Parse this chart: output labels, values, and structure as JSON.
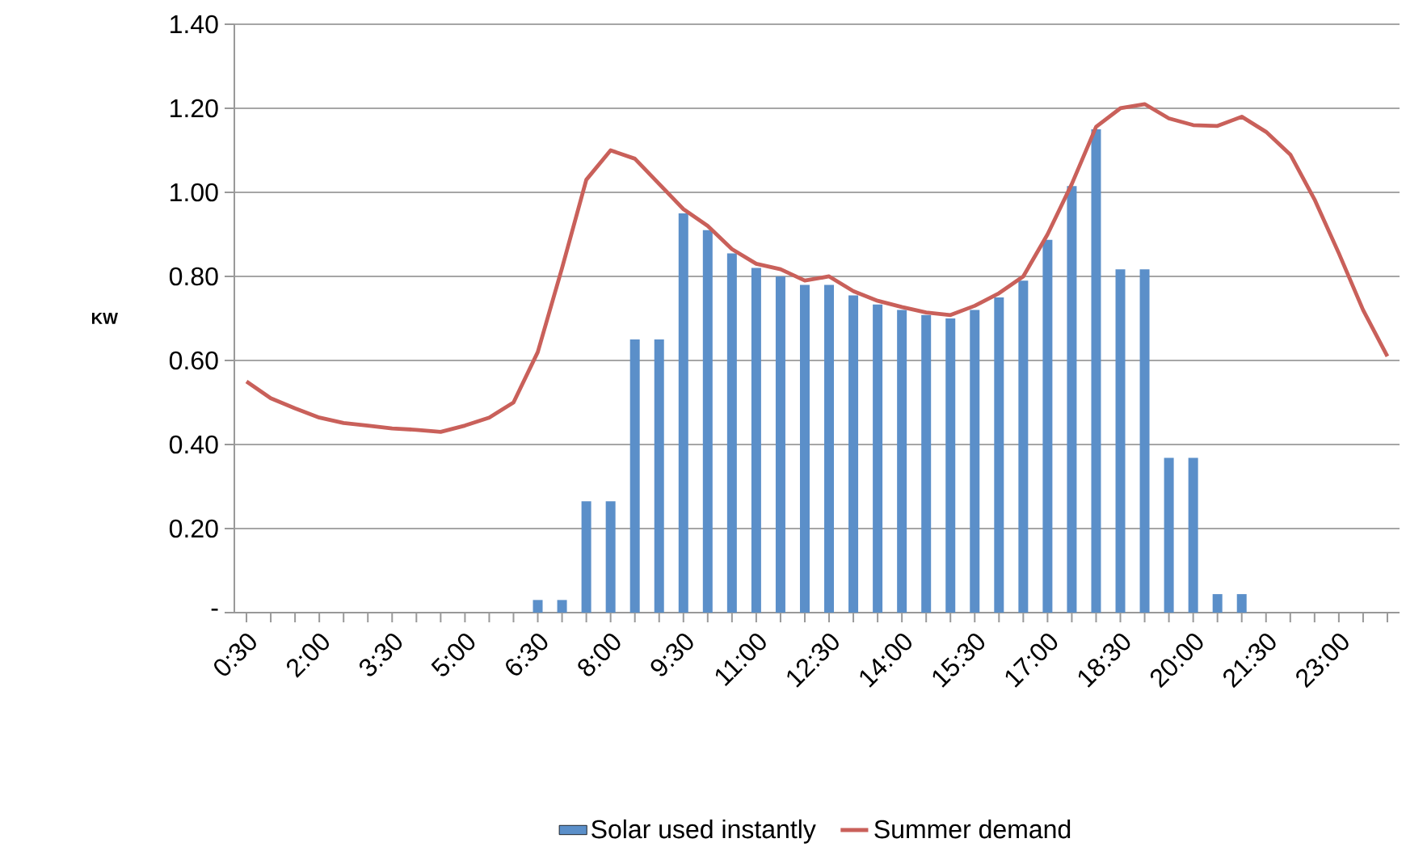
{
  "chart_data": {
    "type": "bar",
    "ylabel": "KW",
    "categories": [
      "0:30",
      null,
      null,
      "2:00",
      null,
      null,
      "3:30",
      null,
      null,
      "5:00",
      null,
      null,
      "6:30",
      null,
      null,
      "8:00",
      null,
      null,
      "9:30",
      null,
      null,
      "11:00",
      null,
      null,
      "12:30",
      null,
      null,
      "14:00",
      null,
      null,
      "15:30",
      null,
      null,
      "17:00",
      null,
      null,
      "18:30",
      null,
      null,
      "20:00",
      null,
      null,
      "21:30",
      null,
      null,
      "23:00",
      null,
      null
    ],
    "series": [
      {
        "name": "Solar used instantly",
        "color": "#5b8fc9",
        "values": [
          0,
          0,
          0,
          0,
          0,
          0,
          0,
          0,
          0,
          0,
          0,
          0,
          0.03,
          0.03,
          0.265,
          0.265,
          0.65,
          0.65,
          0.95,
          0.91,
          0.855,
          0.82,
          0.8,
          0.78,
          0.78,
          0.755,
          0.733,
          0.72,
          0.708,
          0.7,
          0.72,
          0.75,
          0.79,
          0.887,
          1.015,
          1.15,
          0.817,
          0.817,
          0.368,
          0.368,
          0.044,
          0.044,
          0,
          0,
          0,
          0,
          0,
          0
        ]
      },
      {
        "name": "Summer demand",
        "type": "line",
        "color": "#c9605a",
        "values": [
          0.55,
          0.51,
          0.486,
          0.464,
          0.451,
          0.445,
          0.438,
          0.435,
          0.43,
          0.445,
          0.464,
          0.5,
          0.62,
          0.82,
          1.03,
          1.1,
          1.08,
          1.02,
          0.96,
          0.92,
          0.865,
          0.83,
          0.817,
          0.79,
          0.8,
          0.765,
          0.742,
          0.727,
          0.714,
          0.708,
          0.73,
          0.76,
          0.8,
          0.9,
          1.02,
          1.156,
          1.2,
          1.21,
          1.176,
          1.16,
          1.158,
          1.18,
          1.144,
          1.09,
          0.983,
          0.855,
          0.72,
          0.61
        ]
      }
    ],
    "ylim": [
      0,
      1.4
    ],
    "yticks": [
      {
        "value": 0,
        "label": "-"
      },
      {
        "value": 0.2,
        "label": "0.20"
      },
      {
        "value": 0.4,
        "label": "0.40"
      },
      {
        "value": 0.6,
        "label": "0.60"
      },
      {
        "value": 0.8,
        "label": "0.80"
      },
      {
        "value": 1.0,
        "label": "1.00"
      },
      {
        "value": 1.2,
        "label": "1.20"
      },
      {
        "value": 1.4,
        "label": "1.40"
      }
    ],
    "grid": "y",
    "legend": "bottom",
    "marker": "none",
    "line_style": "solid"
  }
}
